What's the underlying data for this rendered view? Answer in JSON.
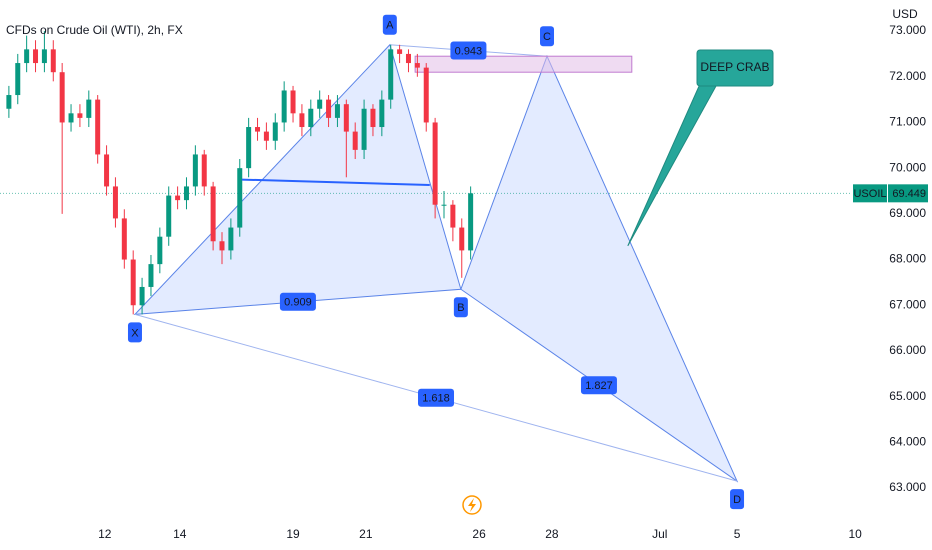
{
  "chart_data": {
    "type": "candlestick",
    "title": "CFDs on Crude Oil (WTI), 2h, FX",
    "y_axis_label": "USD",
    "symbol": "USOIL",
    "last_price": 69.449,
    "up_color": "#089981",
    "down_color": "#f23645",
    "x": [
      2,
      4,
      6,
      8,
      10,
      12,
      14,
      16,
      18,
      20,
      22,
      24,
      26,
      28,
      30,
      32,
      34,
      36,
      38,
      40,
      42,
      44,
      46,
      48,
      50,
      52,
      54,
      56,
      58,
      60,
      62,
      64,
      66,
      68,
      70,
      72,
      74,
      76,
      78,
      80,
      82,
      84,
      86,
      88,
      90,
      92,
      94,
      96,
      98,
      100,
      102,
      104,
      106
    ],
    "open": [
      71.3,
      71.6,
      72.3,
      72.6,
      72.3,
      72.6,
      72.1,
      71.0,
      71.2,
      71.1,
      71.5,
      70.3,
      69.6,
      68.9,
      68.0,
      67.0,
      67.4,
      67.9,
      68.5,
      69.4,
      69.3,
      69.6,
      70.3,
      69.6,
      68.4,
      68.2,
      68.7,
      70.0,
      70.9,
      70.8,
      70.6,
      71.0,
      71.7,
      71.2,
      70.9,
      71.3,
      71.5,
      71.1,
      71.4,
      70.8,
      70.4,
      71.3,
      70.9,
      71.5,
      72.6,
      72.5,
      72.3,
      72.2,
      71.0,
      69.2,
      69.2,
      68.7,
      68.2
    ],
    "high": [
      71.8,
      72.5,
      72.9,
      72.8,
      73.0,
      72.8,
      72.3,
      71.4,
      71.4,
      71.7,
      71.6,
      70.5,
      69.8,
      69.1,
      68.2,
      67.6,
      68.1,
      68.7,
      69.6,
      69.6,
      69.8,
      70.5,
      70.4,
      69.7,
      68.6,
      68.9,
      70.2,
      71.1,
      71.1,
      71.0,
      71.2,
      71.9,
      71.8,
      71.4,
      71.5,
      71.7,
      71.6,
      71.6,
      71.5,
      71.0,
      71.5,
      71.4,
      71.7,
      72.7,
      72.7,
      72.6,
      72.5,
      72.3,
      71.1,
      69.5,
      69.3,
      68.9,
      69.6
    ],
    "low": [
      71.1,
      71.4,
      72.1,
      72.1,
      72.1,
      71.9,
      69.0,
      70.8,
      70.9,
      70.9,
      70.1,
      69.4,
      68.7,
      67.8,
      66.8,
      66.8,
      67.2,
      67.7,
      68.3,
      69.1,
      69.1,
      69.4,
      69.4,
      68.2,
      67.9,
      68.0,
      68.5,
      69.8,
      70.6,
      70.4,
      70.4,
      70.8,
      71.0,
      70.7,
      70.7,
      71.1,
      70.9,
      70.9,
      69.8,
      70.2,
      70.2,
      70.7,
      70.7,
      71.3,
      72.3,
      72.1,
      72.0,
      70.8,
      68.9,
      68.9,
      68.4,
      67.6,
      68.0
    ],
    "close": [
      71.6,
      72.3,
      72.6,
      72.3,
      72.6,
      72.1,
      71.0,
      71.2,
      71.1,
      71.5,
      70.3,
      69.6,
      68.9,
      68.0,
      67.0,
      67.4,
      67.9,
      68.5,
      69.4,
      69.3,
      69.6,
      70.3,
      69.6,
      68.4,
      68.2,
      68.7,
      70.0,
      70.9,
      70.8,
      70.6,
      71.0,
      71.7,
      71.2,
      70.9,
      71.3,
      71.5,
      71.1,
      71.4,
      70.8,
      70.4,
      71.3,
      70.9,
      71.5,
      72.6,
      72.5,
      72.3,
      72.2,
      71.0,
      69.2,
      69.2,
      68.7,
      68.2,
      69.449
    ],
    "xlim": [
      0,
      200
    ],
    "xticks": [
      {
        "value": 23.6,
        "label": "12"
      },
      {
        "value": 40.5,
        "label": "14"
      },
      {
        "value": 66,
        "label": "19"
      },
      {
        "value": 82.4,
        "label": "21"
      },
      {
        "value": 107.9,
        "label": "26"
      },
      {
        "value": 124.3,
        "label": "28"
      },
      {
        "value": 148.6,
        "label": "Jul"
      },
      {
        "value": 166,
        "label": "5"
      },
      {
        "value": 192.6,
        "label": "10"
      }
    ],
    "ylim": [
      62.3,
      73.68
    ],
    "yticks": [
      {
        "value": 63,
        "label": "63.000"
      },
      {
        "value": 64,
        "label": "64.000"
      },
      {
        "value": 65,
        "label": "65.000"
      },
      {
        "value": 66,
        "label": "66.000"
      },
      {
        "value": 67,
        "label": "67.000"
      },
      {
        "value": 68,
        "label": "68.000"
      },
      {
        "value": 69,
        "label": "69.000"
      },
      {
        "value": 70,
        "label": "70.000"
      },
      {
        "value": 71,
        "label": "71.000"
      },
      {
        "value": 72,
        "label": "72.000"
      },
      {
        "value": 73,
        "label": "73.000"
      }
    ],
    "pattern": {
      "points": [
        {
          "label": "X",
          "x": 30.4,
          "y": 66.8
        },
        {
          "label": "A",
          "x": 87.8,
          "y": 72.7
        },
        {
          "label": "B",
          "x": 103.8,
          "y": 67.35
        },
        {
          "label": "C",
          "x": 123.2,
          "y": 72.45
        },
        {
          "label": "D",
          "x": 166,
          "y": 63.15
        }
      ],
      "ratios": [
        0.909,
        0.943,
        1.618,
        1.827
      ]
    },
    "trend_line": {
      "x": [
        54.5,
        96.8
      ],
      "y": [
        69.75,
        69.63
      ]
    },
    "zone": {
      "x": [
        93.5,
        142.3
      ],
      "y": [
        72.1,
        72.45
      ]
    },
    "callout": {
      "text": "DEEP CRAB",
      "x": 141.4,
      "y": 68.3
    }
  }
}
